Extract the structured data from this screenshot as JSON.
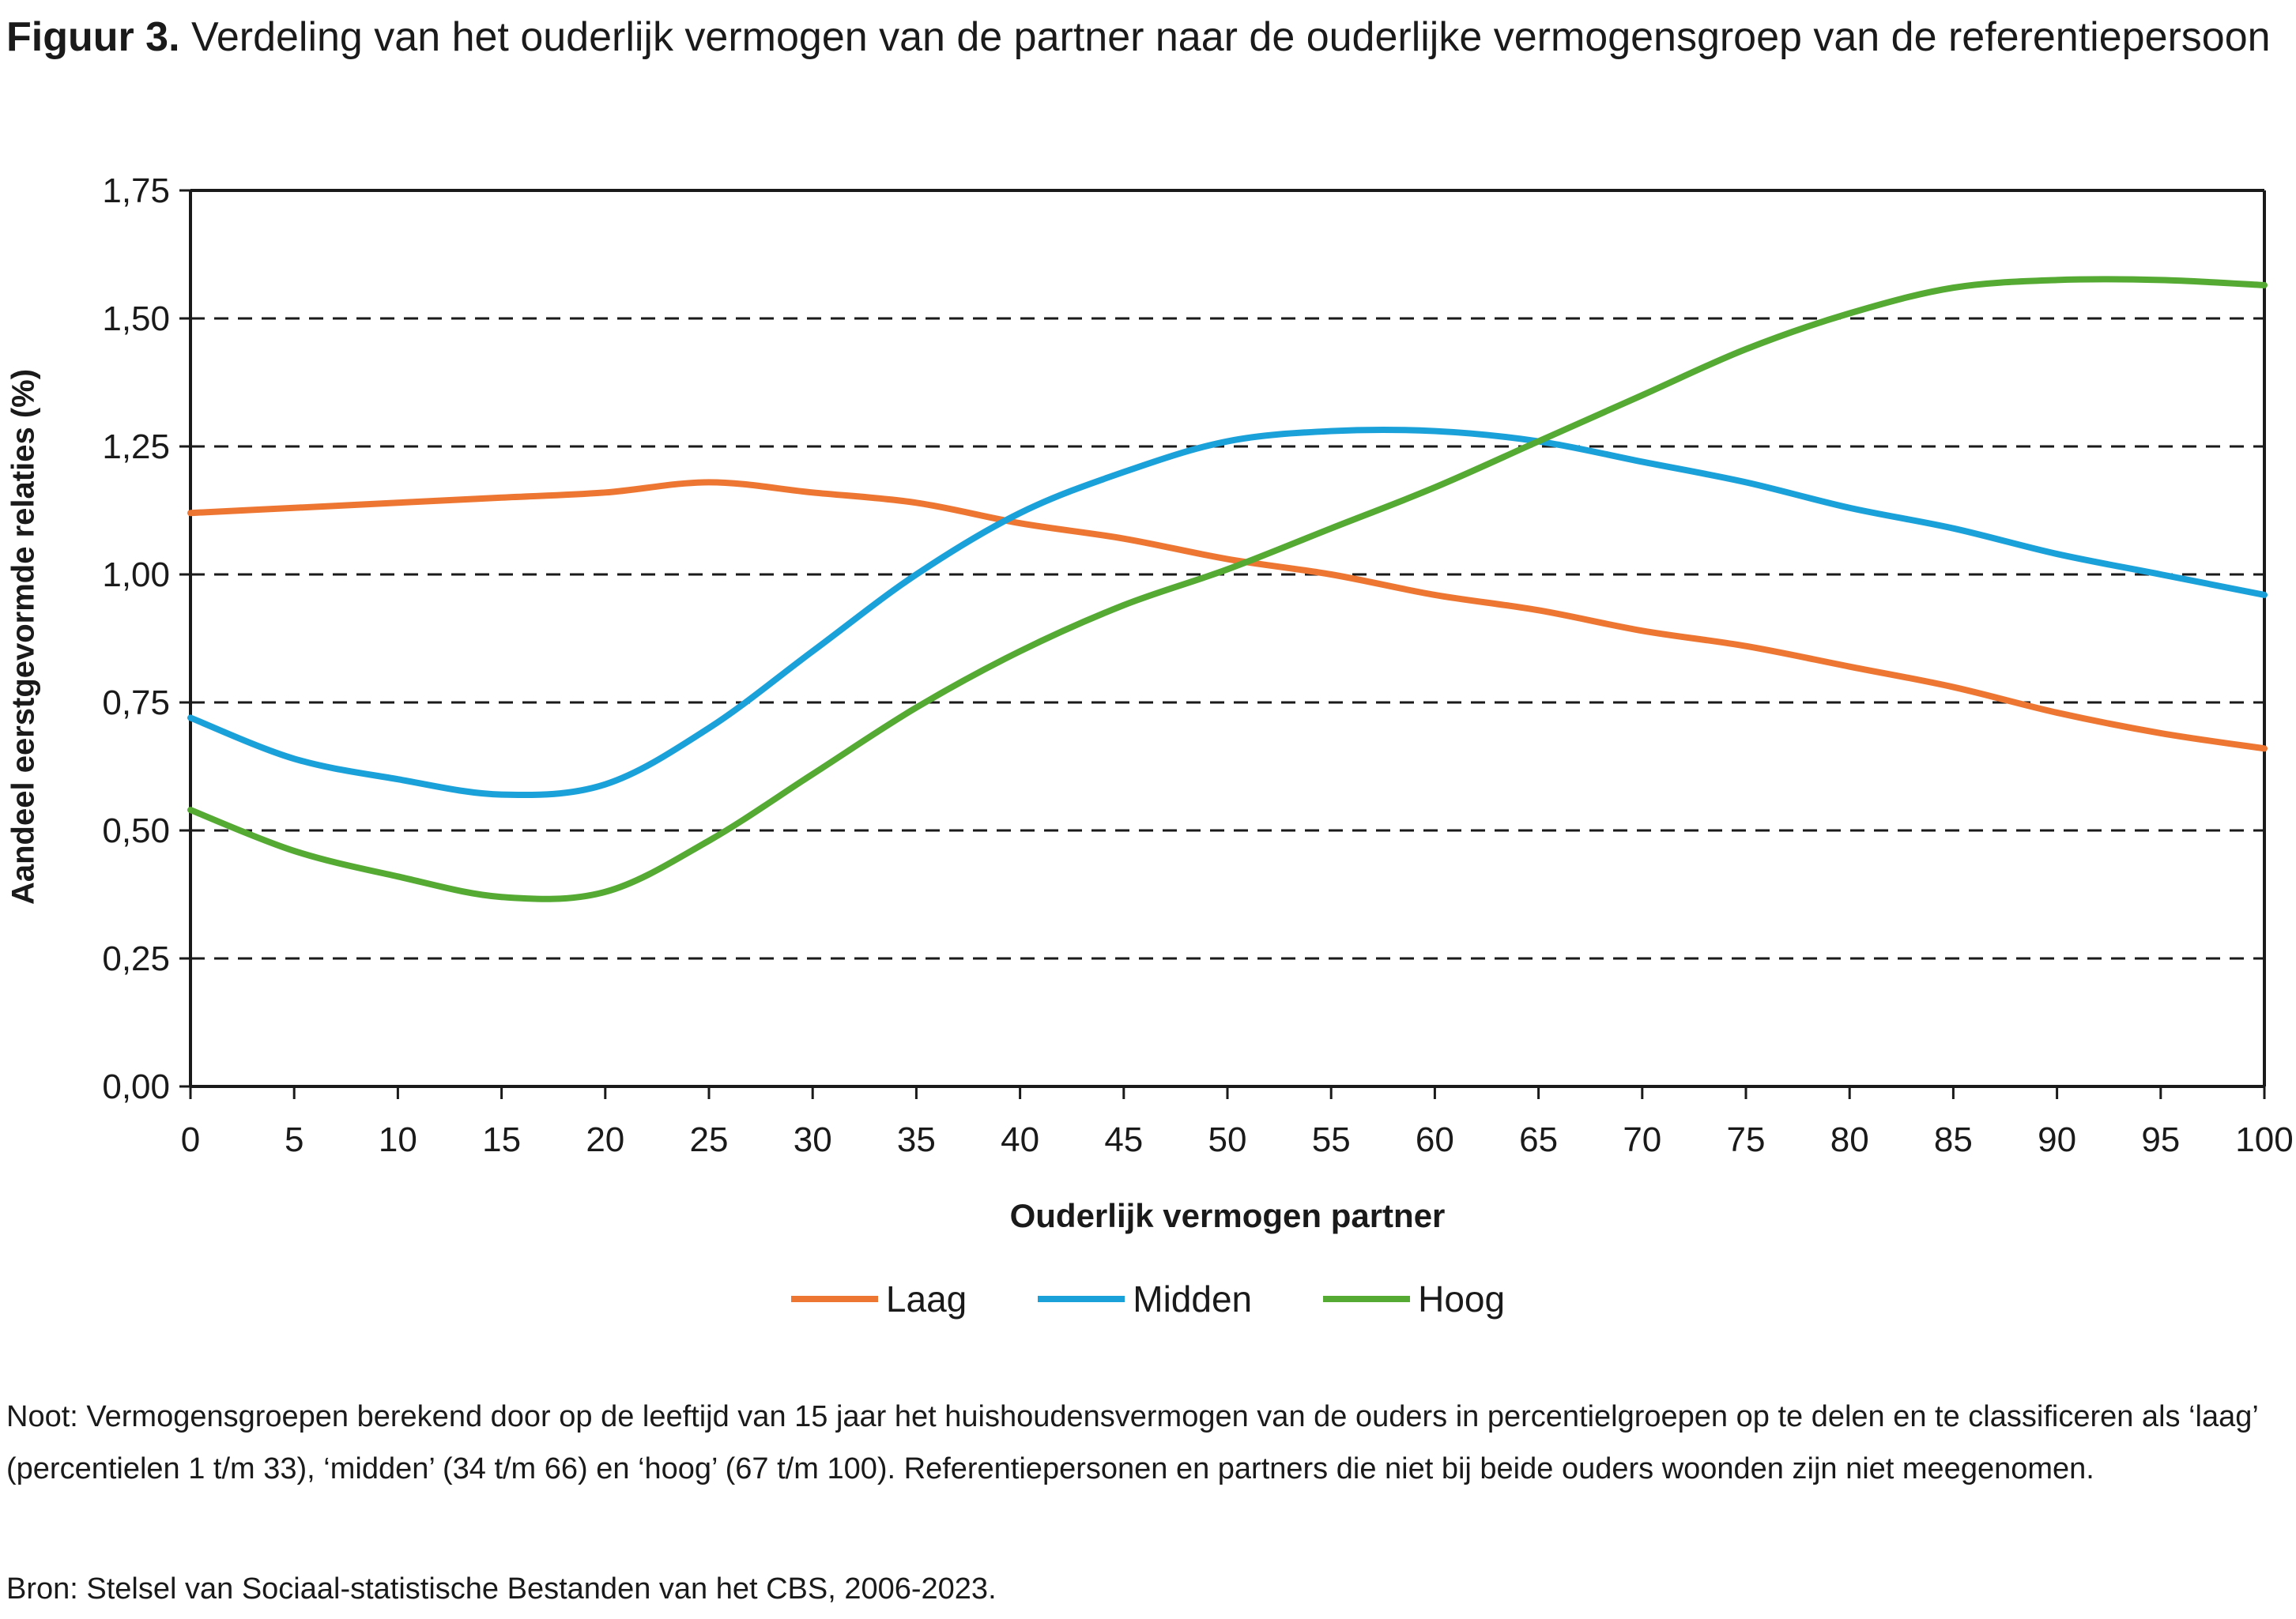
{
  "figure_label": "Figuur 3.",
  "title": "Verdeling van het ouderlijk vermogen van de partner naar de ouderlijke vermogensgroep van de referentiepersoon",
  "note": "Noot: Vermogensgroepen berekend door op de leeftijd van 15 jaar het huishoudensvermogen van de ouders in percentielgroepen op te delen en te classificeren als ‘laag’ (percentielen 1 t/m 33), ‘midden’ (34 t/m 66) en ‘hoog’ (67 t/m 100). Referentiepersonen en partners die niet bij beide ouders woonden zijn niet meegenomen.",
  "source": "Bron: Stelsel van Sociaal-statistische Bestanden van het CBS, 2006-2023.",
  "chart_data": {
    "type": "line",
    "xlabel": "Ouderlijk vermogen partner",
    "ylabel": "Aandeel eerstgevormde relaties (%)",
    "xlim": [
      0,
      100
    ],
    "ylim": [
      0,
      1.75
    ],
    "x_ticks": [
      "0",
      "5",
      "10",
      "15",
      "20",
      "25",
      "30",
      "35",
      "40",
      "45",
      "50",
      "55",
      "60",
      "65",
      "70",
      "75",
      "80",
      "85",
      "90",
      "95",
      "100"
    ],
    "y_ticks": [
      "0,00",
      "0,25",
      "0,50",
      "0,75",
      "1,00",
      "1,25",
      "1,50",
      "1,75"
    ],
    "grid": "horizontal dashed",
    "legend_position": "bottom",
    "x": [
      0,
      5,
      10,
      15,
      20,
      25,
      30,
      35,
      40,
      45,
      50,
      55,
      60,
      65,
      70,
      75,
      80,
      85,
      90,
      95,
      100
    ],
    "series": [
      {
        "name": "Laag",
        "color": "#ee7633",
        "values": [
          1.12,
          1.13,
          1.14,
          1.15,
          1.16,
          1.18,
          1.16,
          1.14,
          1.1,
          1.07,
          1.03,
          1.0,
          0.96,
          0.93,
          0.89,
          0.86,
          0.82,
          0.78,
          0.73,
          0.69,
          0.66
        ]
      },
      {
        "name": "Midden",
        "color": "#1ba1d9",
        "values": [
          0.72,
          0.64,
          0.6,
          0.57,
          0.59,
          0.7,
          0.85,
          1.0,
          1.12,
          1.2,
          1.26,
          1.28,
          1.28,
          1.26,
          1.22,
          1.18,
          1.13,
          1.09,
          1.04,
          1.0,
          0.96
        ]
      },
      {
        "name": "Hoog",
        "color": "#55aa33",
        "values": [
          0.54,
          0.46,
          0.41,
          0.37,
          0.38,
          0.48,
          0.61,
          0.74,
          0.85,
          0.94,
          1.01,
          1.09,
          1.17,
          1.26,
          1.35,
          1.44,
          1.51,
          1.56,
          1.575,
          1.575,
          1.565
        ]
      }
    ]
  }
}
